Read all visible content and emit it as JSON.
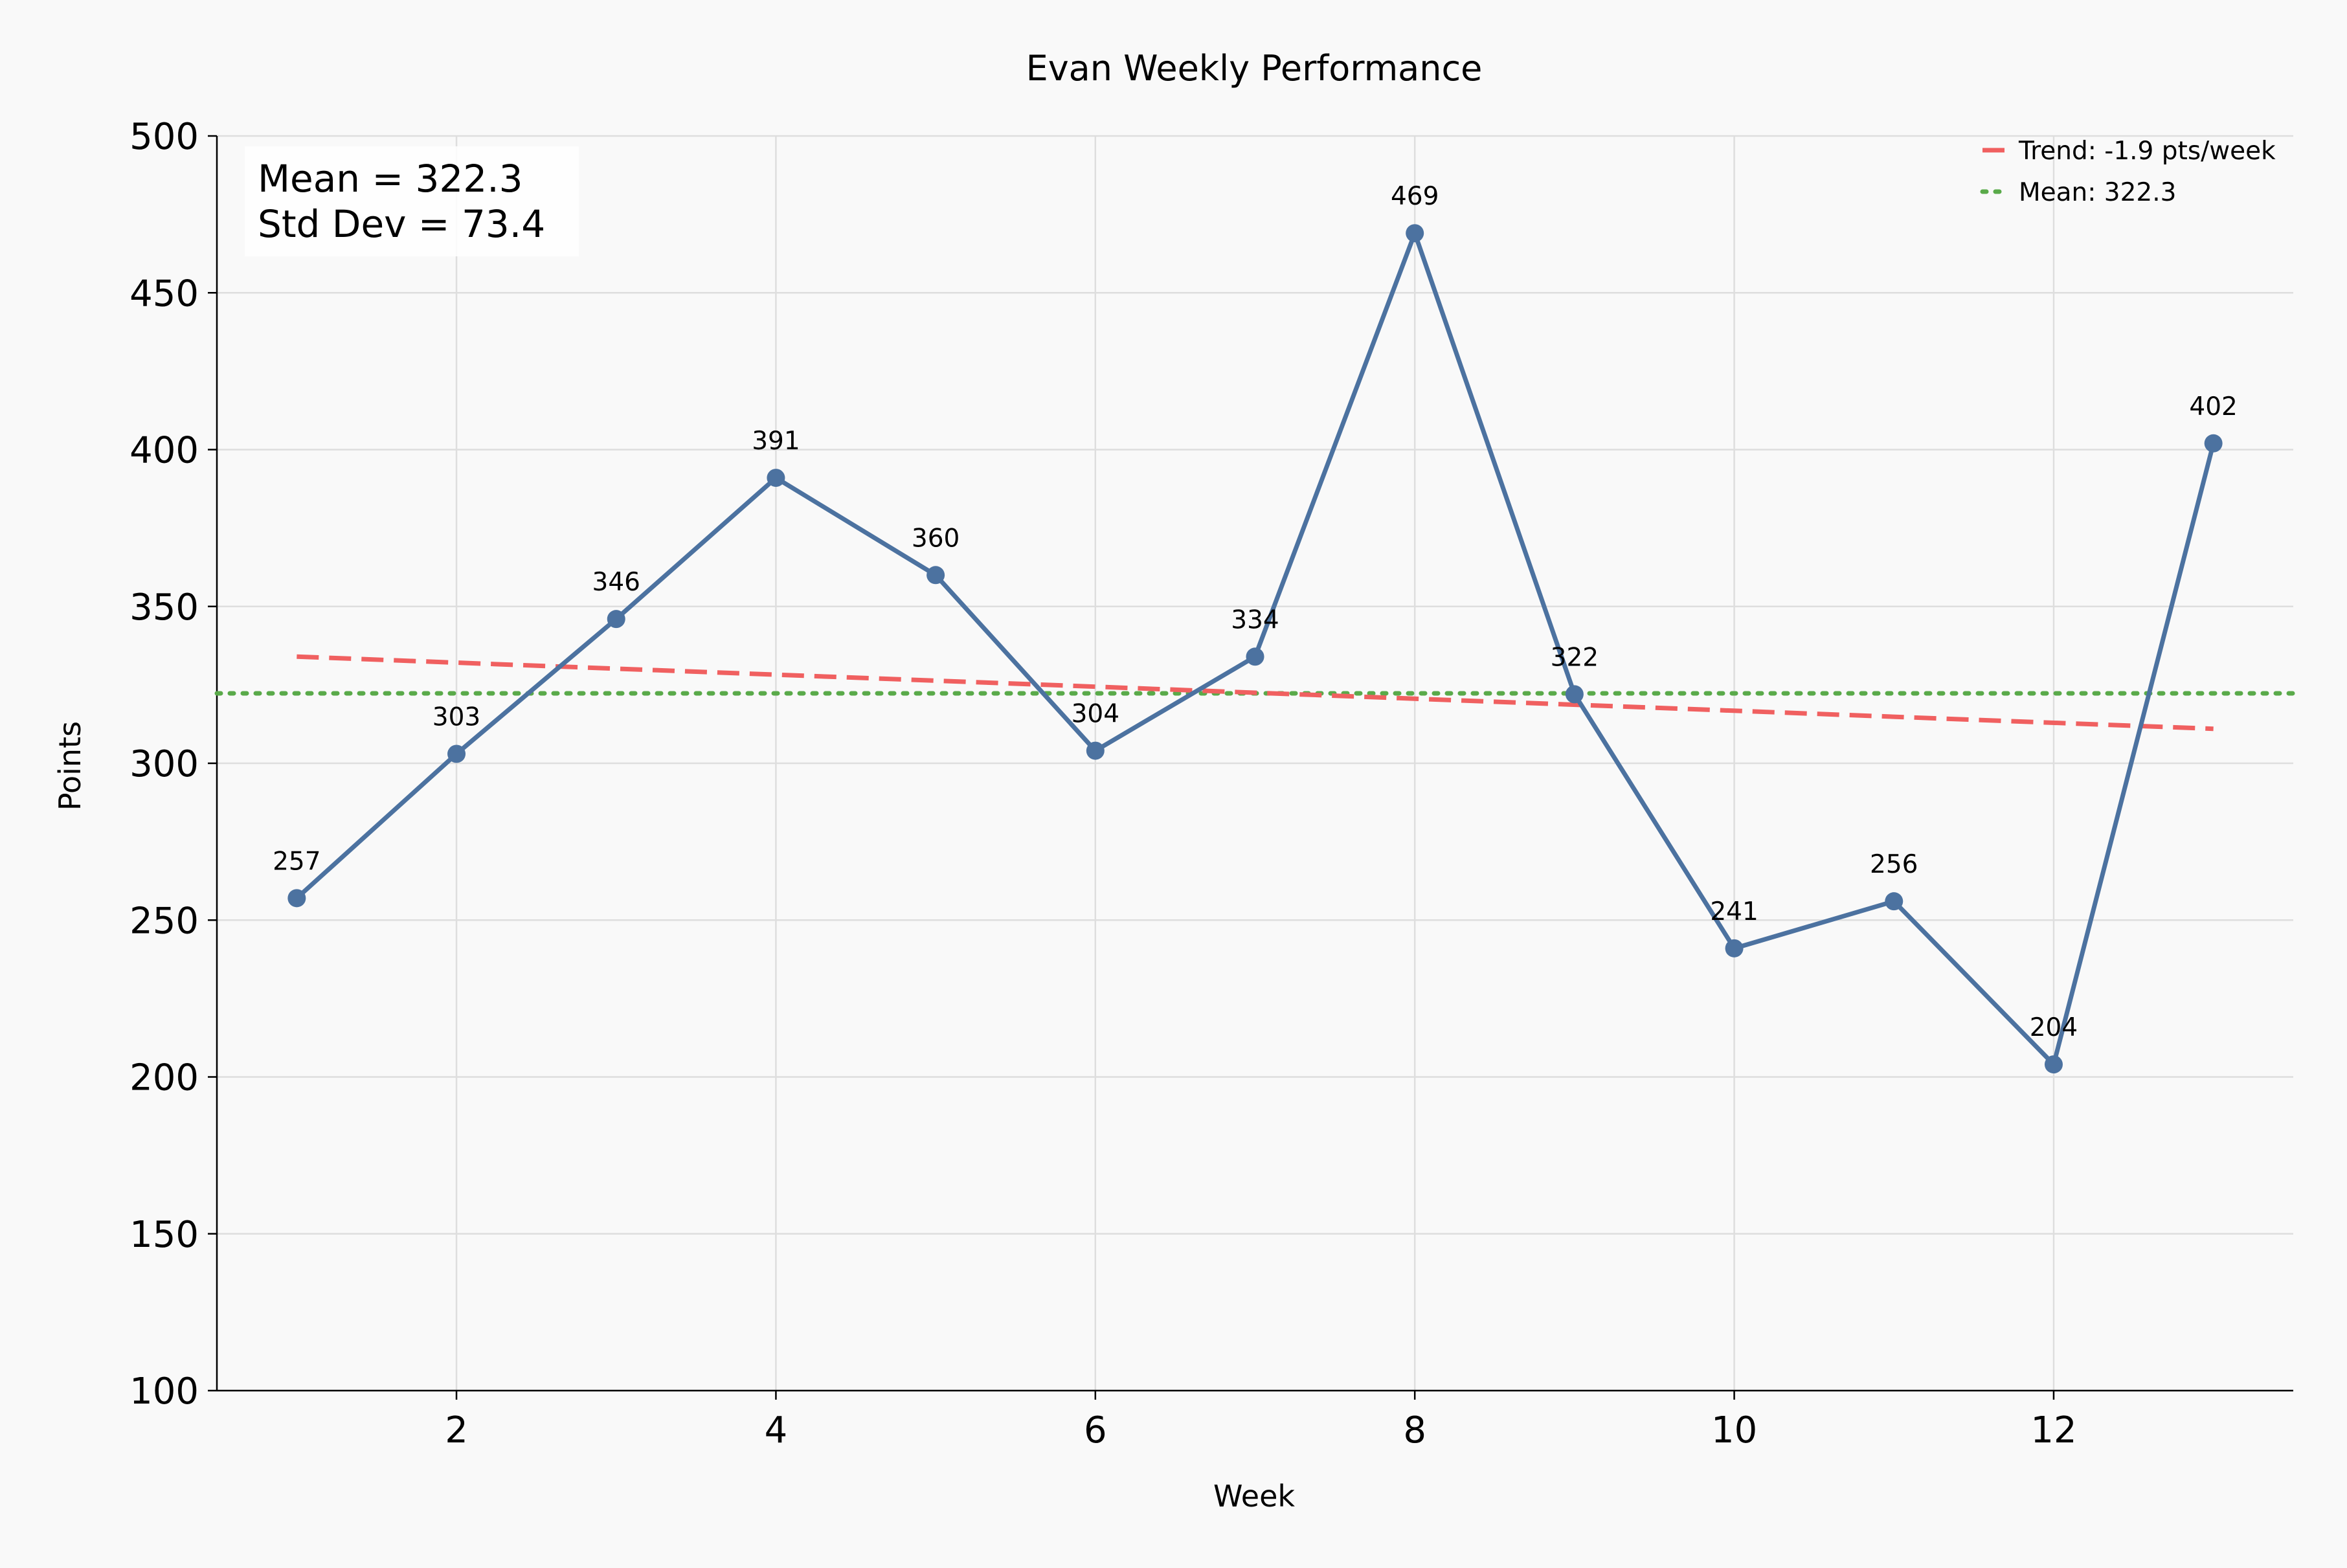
{
  "chart_data": {
    "type": "line",
    "title": "Evan Weekly Performance",
    "xlabel": "Week",
    "ylabel": "Points",
    "xlim": [
      0.5,
      13.5
    ],
    "ylim": [
      100,
      500
    ],
    "x_ticks": [
      2,
      4,
      6,
      8,
      10,
      12
    ],
    "y_ticks": [
      100,
      150,
      200,
      250,
      300,
      350,
      400,
      450,
      500
    ],
    "grid": true,
    "legend_position": "top-right",
    "series": [
      {
        "x": [
          1,
          2,
          3,
          4,
          5,
          6,
          7,
          8,
          9,
          10,
          11,
          12,
          13
        ],
        "values": [
          257,
          303,
          346,
          391,
          360,
          304,
          334,
          469,
          322,
          241,
          256,
          204,
          402
        ],
        "color": "#4c72a0"
      }
    ],
    "trend_line": {
      "name": "Trend: -1.9 pts/week",
      "x": [
        1,
        13
      ],
      "values": [
        334,
        311
      ],
      "color": "#f06060",
      "style": "dashed"
    },
    "mean_line": {
      "name": "Mean: 322.3",
      "value": 322.3,
      "color": "#5aaa4a",
      "style": "dotted"
    },
    "stats_box": {
      "mean_text": "Mean = 322.3",
      "std_text": "Std Dev = 73.4"
    }
  }
}
